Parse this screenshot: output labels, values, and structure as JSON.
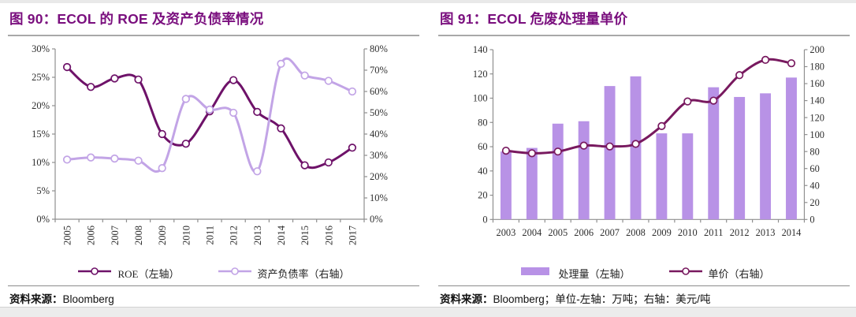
{
  "colors": {
    "title": "#7a0f7e",
    "axis": "#8f8f8f",
    "tick_text": "#2f2f2f",
    "roe_line": "#6e1269",
    "debt_line": "#c2a4e6",
    "bar_fill": "#b892e6",
    "price_line": "#78195f"
  },
  "figure90": {
    "title": "图 90：ECOL 的 ROE 及资产负债率情况",
    "source_prefix": "资料来源：",
    "source_value": "Bloomberg",
    "legend": [
      {
        "label": "ROE（左轴）"
      },
      {
        "label": "资产负债率（右轴）"
      }
    ],
    "chart_data": {
      "type": "line",
      "categories": [
        "2005",
        "2006",
        "2007",
        "2008",
        "2009",
        "2010",
        "2011",
        "2012",
        "2013",
        "2014",
        "2015",
        "2016",
        "2017"
      ],
      "series": [
        {
          "name": "ROE（左轴）",
          "type": "line",
          "axis": "left",
          "color": "#6e1269",
          "values": [
            26.8,
            23.3,
            24.8,
            24.6,
            15.0,
            13.3,
            19.0,
            24.5,
            18.9,
            16.0,
            9.5,
            10.0,
            12.6
          ]
        },
        {
          "name": "资产负债率（右轴）",
          "type": "line",
          "axis": "right",
          "color": "#c2a4e6",
          "values": [
            28,
            29,
            28.5,
            27.5,
            24,
            56.5,
            51.5,
            50,
            22.5,
            73,
            67.5,
            65,
            60
          ]
        }
      ],
      "left_axis": {
        "min": 0,
        "max": 30,
        "step": 5,
        "suffix": "%"
      },
      "right_axis": {
        "min": 0,
        "max": 80,
        "step": 10,
        "suffix": "%"
      },
      "grid": false,
      "legend_position": "bottom"
    }
  },
  "figure91": {
    "title": "图 91：ECOL 危废处理量单价",
    "source_prefix": "资料来源：",
    "source_value": "Bloomberg；单位-左轴：万吨；右轴：美元/吨",
    "legend": [
      {
        "label": "处理量（左轴）"
      },
      {
        "label": "单价（右轴）"
      }
    ],
    "chart_data": {
      "type": "bar",
      "categories": [
        "2003",
        "2004",
        "2005",
        "2006",
        "2007",
        "2008",
        "2009",
        "2010",
        "2011",
        "2012",
        "2013",
        "2014"
      ],
      "series": [
        {
          "name": "处理量（左轴）",
          "type": "bar",
          "axis": "left",
          "color": "#b892e6",
          "values": [
            56,
            59,
            79,
            81,
            110,
            118,
            71,
            71,
            109,
            101,
            104,
            117
          ]
        },
        {
          "name": "单价（右轴）",
          "type": "line",
          "axis": "right",
          "color": "#78195f",
          "values": [
            81,
            78,
            80,
            87,
            86,
            89,
            110,
            139,
            140,
            170,
            188,
            184
          ]
        }
      ],
      "left_axis": {
        "min": 0,
        "max": 140,
        "step": 20,
        "suffix": ""
      },
      "right_axis": {
        "min": 0,
        "max": 200,
        "step": 20,
        "suffix": ""
      },
      "grid": false,
      "legend_position": "bottom"
    }
  }
}
